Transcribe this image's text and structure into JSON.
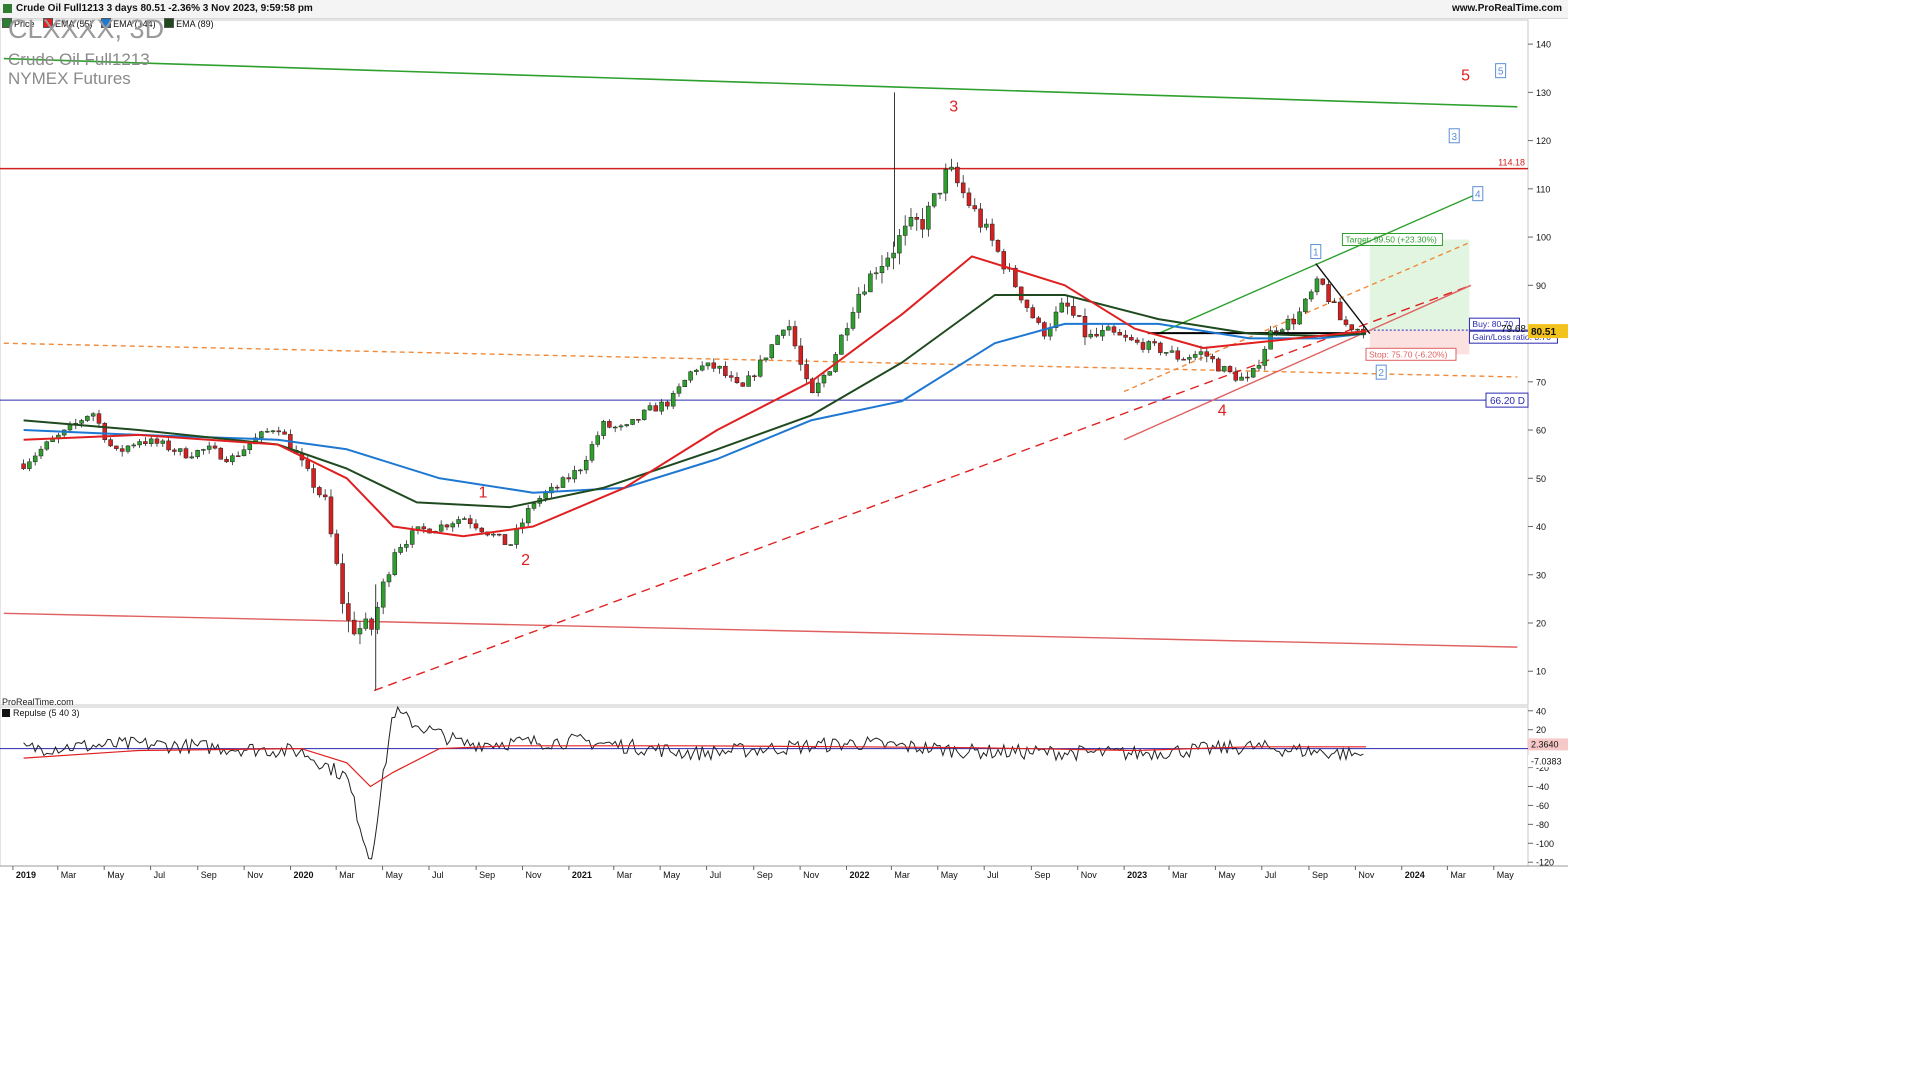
{
  "header": {
    "title": "Crude Oil Full1213 3 days 80.51 -2.36% 3 Nov 2023, 9:59:58 pm",
    "site": "www.ProRealTime.com"
  },
  "legend": [
    {
      "label": "Price",
      "color": "#2e7d32"
    },
    {
      "label": "EMA (55)",
      "color": "#e02020"
    },
    {
      "label": "EMA (144)",
      "color": "#1e78d2"
    },
    {
      "label": "EMA (89)",
      "color": "#1f4a1f"
    }
  ],
  "symbol": {
    "code": "CLXXXX, 3D",
    "name": "Crude Oil Full1213",
    "exchange": "NYMEX Futures"
  },
  "provider_label": "ProRealTime.com",
  "indicator_label": "Repulse (5 40 3)",
  "chart_data": {
    "type": "candlestick",
    "x_ticks": [
      "2019",
      "Mar",
      "May",
      "Jul",
      "Sep",
      "Nov",
      "2020",
      "Mar",
      "May",
      "Jul",
      "Sep",
      "Nov",
      "2021",
      "Mar",
      "May",
      "Jul",
      "Sep",
      "Nov",
      "2022",
      "Mar",
      "May",
      "Jul",
      "Sep",
      "Nov",
      "2023",
      "Mar",
      "May",
      "Jul",
      "Sep",
      "Nov",
      "2024",
      "Mar",
      "May"
    ],
    "y_ticks": [
      140,
      130,
      120,
      110,
      100,
      90,
      80,
      70,
      60,
      50,
      40,
      30,
      20,
      10
    ],
    "ylim": [
      3,
      145
    ],
    "price_series_monthly": {
      "x": [
        "2019-01",
        "2019-02",
        "2019-03",
        "2019-04",
        "2019-05",
        "2019-06",
        "2019-07",
        "2019-08",
        "2019-09",
        "2019-10",
        "2019-11",
        "2019-12",
        "2020-01",
        "2020-02",
        "2020-03",
        "2020-04",
        "2020-05",
        "2020-06",
        "2020-07",
        "2020-08",
        "2020-09",
        "2020-10",
        "2020-11",
        "2020-12",
        "2021-01",
        "2021-02",
        "2021-03",
        "2021-04",
        "2021-05",
        "2021-06",
        "2021-07",
        "2021-08",
        "2021-09",
        "2021-10",
        "2021-11",
        "2021-12",
        "2022-01",
        "2022-02",
        "2022-03",
        "2022-04",
        "2022-05",
        "2022-06",
        "2022-07",
        "2022-08",
        "2022-09",
        "2022-10",
        "2022-11",
        "2022-12",
        "2023-01",
        "2023-02",
        "2023-03",
        "2023-04",
        "2023-05",
        "2023-06",
        "2023-07",
        "2023-08",
        "2023-09",
        "2023-10",
        "2023-11"
      ],
      "close": [
        53,
        57,
        60,
        64,
        55,
        58,
        57,
        55,
        56,
        54,
        58,
        61,
        53,
        45,
        20,
        18,
        35,
        39,
        40,
        42,
        39,
        36,
        45,
        48,
        52,
        61,
        60,
        64,
        66,
        73,
        73,
        68,
        75,
        83,
        66,
        75,
        88,
        95,
        100,
        104,
        114,
        106,
        98,
        89,
        80,
        86,
        79,
        80,
        78,
        77,
        75,
        76,
        72,
        70,
        81,
        83,
        91,
        82,
        80.51
      ],
      "high": [
        55,
        58,
        61,
        67,
        63,
        60,
        60,
        58,
        63,
        57,
        59,
        62,
        65,
        54,
        48,
        28,
        38,
        41,
        42,
        44,
        43,
        42,
        46,
        49,
        53,
        63,
        66,
        65,
        68,
        74,
        76,
        73,
        77,
        85,
        84,
        76,
        90,
        100,
        130,
        108,
        120,
        123,
        105,
        97,
        90,
        93,
        93,
        82,
        82,
        80,
        80,
        84,
        77,
        74,
        82,
        84,
        95,
        90,
        82
      ],
      "low": [
        44,
        52,
        56,
        58,
        52,
        50,
        52,
        51,
        52,
        51,
        54,
        57,
        50,
        44,
        20,
        6,
        25,
        34,
        38,
        40,
        36,
        34,
        34,
        44,
        47,
        51,
        58,
        58,
        61,
        64,
        65,
        62,
        69,
        76,
        62,
        65,
        75,
        86,
        95,
        93,
        100,
        104,
        88,
        85,
        76,
        79,
        73,
        71,
        74,
        73,
        64,
        75,
        63,
        66,
        68,
        76,
        80,
        80,
        80
      ]
    },
    "ema_55": {
      "x": [
        "2019-01",
        "2019-06",
        "2019-12",
        "2020-03",
        "2020-05",
        "2020-08",
        "2020-11",
        "2021-03",
        "2021-07",
        "2021-11",
        "2022-03",
        "2022-06",
        "2022-10",
        "2023-01",
        "2023-04",
        "2023-08",
        "2023-11"
      ],
      "values": [
        58,
        59,
        57,
        50,
        40,
        38,
        40,
        48,
        60,
        70,
        84,
        96,
        90,
        81,
        77,
        79,
        80.5
      ]
    },
    "ema_89": {
      "x": [
        "2019-01",
        "2019-06",
        "2019-12",
        "2020-03",
        "2020-06",
        "2020-10",
        "2021-02",
        "2021-07",
        "2021-11",
        "2022-03",
        "2022-07",
        "2022-10",
        "2023-02",
        "2023-06",
        "2023-09",
        "2023-11"
      ],
      "values": [
        62,
        60,
        57,
        52,
        45,
        44,
        48,
        56,
        63,
        74,
        88,
        88,
        83,
        80,
        79.5,
        80
      ]
    },
    "ema_144": {
      "x": [
        "2019-01",
        "2019-06",
        "2019-12",
        "2020-03",
        "2020-07",
        "2020-11",
        "2021-03",
        "2021-07",
        "2021-11",
        "2022-03",
        "2022-07",
        "2022-10",
        "2023-02",
        "2023-06",
        "2023-09",
        "2023-11"
      ],
      "values": [
        60,
        59,
        58,
        56,
        50,
        47,
        48,
        54,
        62,
        66,
        78,
        82,
        82,
        79,
        79,
        80
      ]
    },
    "horizontal_levels": [
      {
        "label": "114.18",
        "value": 114.18,
        "color": "#d32020"
      },
      {
        "label": "66.20 D",
        "value": 66.2,
        "color": "#2a2ab0"
      }
    ],
    "trendlines": [
      {
        "from": [
          "2018-12-20",
          137
        ],
        "to": [
          "2024-06-01",
          127
        ],
        "color": "#2ea02e",
        "style": "solid"
      },
      {
        "from": [
          "2018-12-20",
          22
        ],
        "to": [
          "2024-06-01",
          15
        ],
        "color": "#e06060",
        "style": "solid"
      },
      {
        "from": [
          "2018-12-20",
          78
        ],
        "to": [
          "2024-06-01",
          71
        ],
        "color": "#f08a3a",
        "style": "dashed"
      },
      {
        "from": [
          "2020-04-20",
          6
        ],
        "to": [
          "2024-04-01",
          90
        ],
        "color": "#e02020",
        "style": "dashed"
      },
      {
        "from": [
          "2023-01-01",
          58
        ],
        "to": [
          "2024-04-01",
          90
        ],
        "color": "#e06060",
        "style": "solid"
      },
      {
        "from": [
          "2023-01-01",
          68
        ],
        "to": [
          "2024-04-01",
          99
        ],
        "color": "#f08a3a",
        "style": "dashed"
      },
      {
        "from": [
          "2023-02-15",
          80
        ],
        "to": [
          "2024-04-10",
          109
        ],
        "color": "#2ea02e",
        "style": "solid"
      },
      {
        "from": [
          "2023-09-10",
          94.5
        ],
        "to": [
          "2023-11-20",
          80
        ],
        "color": "#111111",
        "style": "solid"
      },
      {
        "from": [
          "2023-02-01",
          80.1
        ],
        "to": [
          "2023-11-03",
          80.1
        ],
        "color": "#000000",
        "style": "solid"
      }
    ],
    "trade_box": {
      "buy_label": "Buy: 80.70",
      "buy": 80.7,
      "target_label": "Target: 99.50 (+23.30%)",
      "target": 99.5,
      "stop_label": "Stop: 75.70 (-6.20%)",
      "stop": 75.7,
      "ratio_label": "Gain/Loss ratio: 3.76"
    },
    "wave_labels": [
      {
        "text": "1",
        "x": "2020-09-10",
        "y": 46,
        "color": "#e02020"
      },
      {
        "text": "2",
        "x": "2020-11-05",
        "y": 32,
        "color": "#e02020"
      },
      {
        "text": "3",
        "x": "2022-05-22",
        "y": 126,
        "color": "#e02020"
      },
      {
        "text": "4",
        "x": "2023-05-10",
        "y": 63,
        "color": "#e02020"
      },
      {
        "text": "5",
        "x": "2024-03-25",
        "y": 132.5,
        "color": "#e02020"
      }
    ],
    "projection_labels": [
      {
        "text": "1",
        "x": "2023-09-10",
        "y": 97
      },
      {
        "text": "2",
        "x": "2023-12-05",
        "y": 72
      },
      {
        "text": "3",
        "x": "2024-03-10",
        "y": 121
      },
      {
        "text": "4",
        "x": "2024-04-10",
        "y": 109
      },
      {
        "text": "5",
        "x": "2024-05-10",
        "y": 134.5
      }
    ],
    "last_price_label": "80.51",
    "last_price": 80.51,
    "side_value_label": "79.68",
    "indicator": {
      "name": "Repulse (5 40 3)",
      "y_ticks": [
        40,
        20,
        -20,
        -40,
        -60,
        -80,
        -100,
        -120
      ],
      "ylim": [
        -124,
        44
      ],
      "value_labels": [
        "2.3640",
        "-7.0383"
      ],
      "values": [
        2.364,
        -7.0383
      ],
      "fast": {
        "x": [
          "2019-01",
          "2019-06",
          "2020-01",
          "2020-03",
          "2020-04",
          "2020-05",
          "2020-06",
          "2020-08",
          "2021-01",
          "2021-06",
          "2022-01",
          "2022-06",
          "2023-01",
          "2023-06",
          "2023-11"
        ],
        "values": [
          0,
          5,
          -3,
          -30,
          -120,
          40,
          25,
          5,
          8,
          -5,
          6,
          -3,
          -5,
          2,
          -7
        ]
      },
      "slow": {
        "x": [
          "2019-01",
          "2019-06",
          "2020-01",
          "2020-03",
          "2020-04",
          "2020-05",
          "2020-07",
          "2020-10",
          "2021-06",
          "2022-01",
          "2022-06",
          "2023-01",
          "2023-06",
          "2023-11"
        ],
        "values": [
          -10,
          -2,
          0,
          -15,
          -40,
          -25,
          0,
          3,
          3,
          2,
          1,
          -2,
          2,
          2
        ]
      }
    }
  }
}
